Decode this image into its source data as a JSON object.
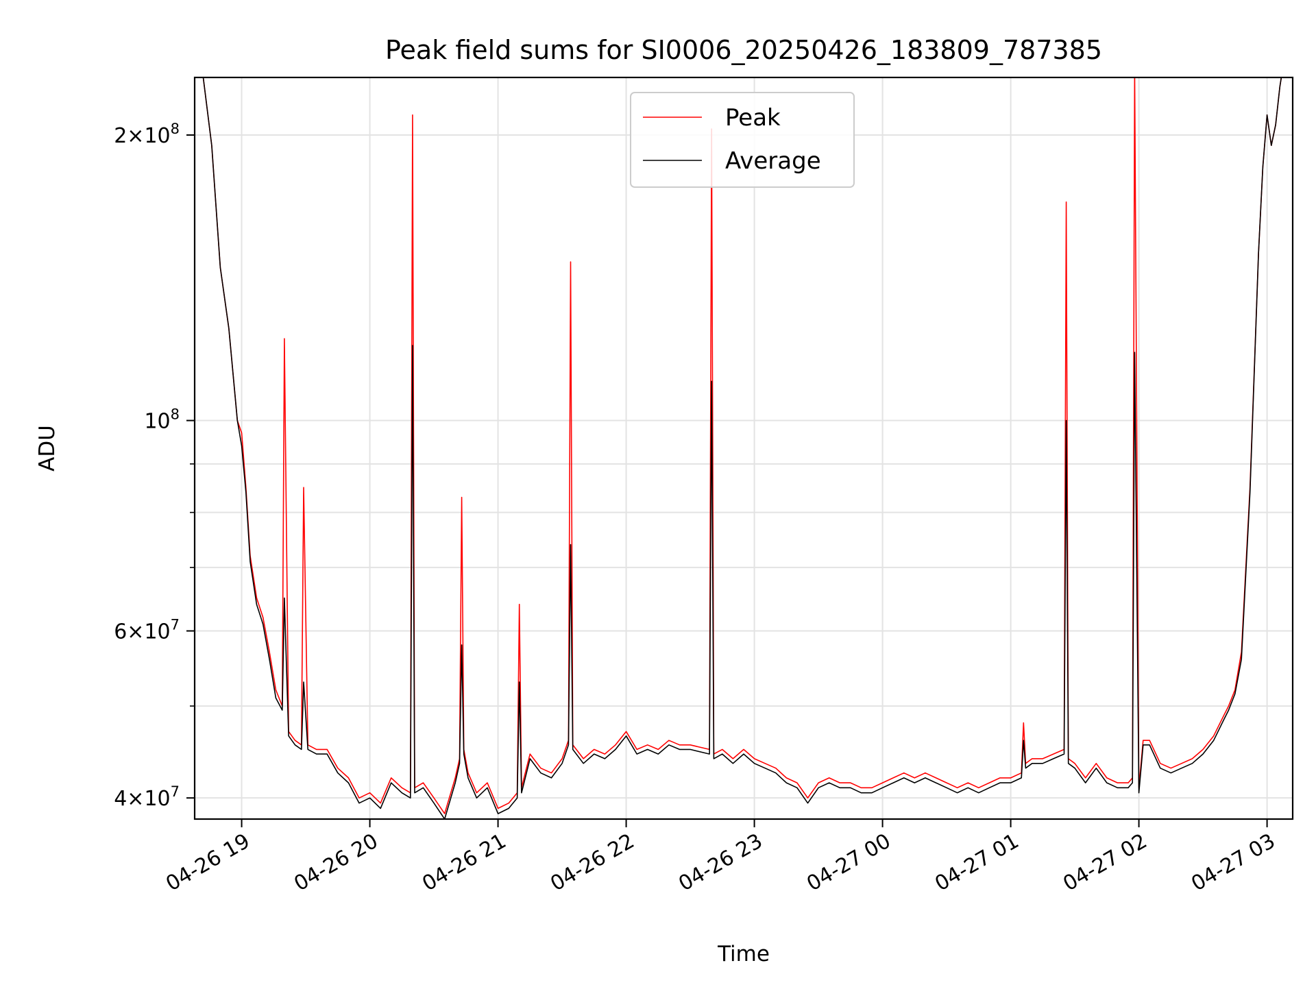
{
  "chart_data": {
    "type": "line",
    "title": "Peak field sums for SI0006_20250426_183809_787385",
    "xlabel": "Time",
    "ylabel": "ADU",
    "yscale": "log",
    "grid": true,
    "legend_placement": "top-center",
    "xlim": [
      "2025-04-26 18:38",
      "2025-04-27 03:12"
    ],
    "ylim": [
      38000000,
      230000000
    ],
    "x_ticks": [
      "04-26 19",
      "04-26 20",
      "04-26 21",
      "04-26 22",
      "04-26 23",
      "04-27 00",
      "04-27 01",
      "04-27 02",
      "04-27 03"
    ],
    "x_tick_values": [
      "2025-04-26 19:00",
      "2025-04-26 20:00",
      "2025-04-26 21:00",
      "2025-04-26 22:00",
      "2025-04-26 23:00",
      "2025-04-27 00:00",
      "2025-04-27 01:00",
      "2025-04-27 02:00",
      "2025-04-27 03:00"
    ],
    "y_ticks": [
      {
        "value": 40000000,
        "mantissa": "4",
        "exp": "7"
      },
      {
        "value": 60000000,
        "mantissa": "6",
        "exp": "7"
      },
      {
        "value": 100000000,
        "mantissa": "",
        "exp": "8"
      },
      {
        "value": 200000000,
        "mantissa": "2",
        "exp": "8"
      }
    ],
    "y_minor_ticks": [
      50000000,
      70000000,
      80000000,
      90000000
    ],
    "series": [
      {
        "name": "Peak",
        "color": "#ff0000",
        "x": [
          "2025-04-26 18:38",
          "2025-04-26 18:42",
          "2025-04-26 18:46",
          "2025-04-26 18:50",
          "2025-04-26 18:54",
          "2025-04-26 18:58",
          "2025-04-26 19:00",
          "2025-04-26 19:02",
          "2025-04-26 19:04",
          "2025-04-26 19:07",
          "2025-04-26 19:10",
          "2025-04-26 19:13",
          "2025-04-26 19:16",
          "2025-04-26 19:19",
          "2025-04-26 19:20",
          "2025-04-26 19:22",
          "2025-04-26 19:25",
          "2025-04-26 19:28",
          "2025-04-26 19:29",
          "2025-04-26 19:31",
          "2025-04-26 19:35",
          "2025-04-26 19:40",
          "2025-04-26 19:45",
          "2025-04-26 19:50",
          "2025-04-26 19:55",
          "2025-04-26 20:00",
          "2025-04-26 20:05",
          "2025-04-26 20:10",
          "2025-04-26 20:15",
          "2025-04-26 20:19",
          "2025-04-26 20:20",
          "2025-04-26 20:21",
          "2025-04-26 20:25",
          "2025-04-26 20:30",
          "2025-04-26 20:35",
          "2025-04-26 20:40",
          "2025-04-26 20:42",
          "2025-04-26 20:43",
          "2025-04-26 20:44",
          "2025-04-26 20:46",
          "2025-04-26 20:50",
          "2025-04-26 20:55",
          "2025-04-26 21:00",
          "2025-04-26 21:05",
          "2025-04-26 21:09",
          "2025-04-26 21:10",
          "2025-04-26 21:11",
          "2025-04-26 21:15",
          "2025-04-26 21:20",
          "2025-04-26 21:25",
          "2025-04-26 21:30",
          "2025-04-26 21:33",
          "2025-04-26 21:34",
          "2025-04-26 21:35",
          "2025-04-26 21:40",
          "2025-04-26 21:45",
          "2025-04-26 21:50",
          "2025-04-26 21:55",
          "2025-04-26 22:00",
          "2025-04-26 22:05",
          "2025-04-26 22:10",
          "2025-04-26 22:15",
          "2025-04-26 22:20",
          "2025-04-26 22:25",
          "2025-04-26 22:30",
          "2025-04-26 22:39",
          "2025-04-26 22:40",
          "2025-04-26 22:41",
          "2025-04-26 22:45",
          "2025-04-26 22:50",
          "2025-04-26 22:55",
          "2025-04-26 23:00",
          "2025-04-26 23:05",
          "2025-04-26 23:10",
          "2025-04-26 23:15",
          "2025-04-26 23:20",
          "2025-04-26 23:25",
          "2025-04-26 23:30",
          "2025-04-26 23:35",
          "2025-04-26 23:40",
          "2025-04-26 23:45",
          "2025-04-26 23:50",
          "2025-04-26 23:55",
          "2025-04-27 00:00",
          "2025-04-27 00:05",
          "2025-04-27 00:10",
          "2025-04-27 00:15",
          "2025-04-27 00:20",
          "2025-04-27 00:25",
          "2025-04-27 00:30",
          "2025-04-27 00:35",
          "2025-04-27 00:40",
          "2025-04-27 00:45",
          "2025-04-27 00:50",
          "2025-04-27 00:55",
          "2025-04-27 01:00",
          "2025-04-27 01:05",
          "2025-04-27 01:06",
          "2025-04-27 01:07",
          "2025-04-27 01:10",
          "2025-04-27 01:15",
          "2025-04-27 01:20",
          "2025-04-27 01:25",
          "2025-04-27 01:26",
          "2025-04-27 01:27",
          "2025-04-27 01:30",
          "2025-04-27 01:35",
          "2025-04-27 01:40",
          "2025-04-27 01:45",
          "2025-04-27 01:50",
          "2025-04-27 01:55",
          "2025-04-27 01:57",
          "2025-04-27 01:58",
          "2025-04-27 02:00",
          "2025-04-27 02:02",
          "2025-04-27 02:05",
          "2025-04-27 02:10",
          "2025-04-27 02:15",
          "2025-04-27 02:20",
          "2025-04-27 02:25",
          "2025-04-27 02:30",
          "2025-04-27 02:35",
          "2025-04-27 02:40",
          "2025-04-27 02:42",
          "2025-04-27 02:45",
          "2025-04-27 02:48",
          "2025-04-27 02:52",
          "2025-04-27 02:56",
          "2025-04-27 02:58",
          "2025-04-27 03:00",
          "2025-04-27 03:02",
          "2025-04-27 03:04",
          "2025-04-27 03:06",
          "2025-04-27 03:08"
        ],
        "values": [
          240000000,
          230000000,
          195000000,
          145000000,
          125000000,
          100000000,
          97000000,
          85000000,
          72000000,
          65000000,
          62000000,
          57000000,
          52000000,
          50000000,
          122000000,
          47000000,
          46000000,
          45500000,
          85000000,
          45500000,
          45000000,
          45000000,
          43000000,
          42000000,
          40000000,
          40500000,
          39500000,
          42000000,
          41000000,
          40500000,
          210000000,
          41000000,
          41500000,
          40000000,
          38500000,
          42000000,
          44000000,
          83000000,
          45000000,
          42500000,
          40500000,
          41500000,
          39000000,
          39500000,
          40500000,
          64000000,
          41000000,
          44500000,
          43000000,
          42500000,
          44000000,
          46000000,
          147000000,
          45500000,
          44000000,
          45000000,
          44500000,
          45500000,
          47000000,
          45000000,
          45500000,
          45000000,
          46000000,
          45500000,
          45500000,
          45000000,
          203000000,
          44500000,
          45000000,
          44000000,
          45000000,
          44000000,
          43500000,
          43000000,
          42000000,
          41500000,
          40000000,
          41500000,
          42000000,
          41500000,
          41500000,
          41000000,
          41000000,
          41500000,
          42000000,
          42500000,
          42000000,
          42500000,
          42000000,
          41500000,
          41000000,
          41500000,
          41000000,
          41500000,
          42000000,
          42000000,
          42500000,
          48000000,
          43500000,
          44000000,
          44000000,
          44500000,
          45000000,
          170000000,
          44000000,
          43500000,
          42000000,
          43500000,
          42000000,
          41500000,
          41500000,
          42000000,
          235000000,
          41000000,
          46000000,
          46000000,
          43500000,
          43000000,
          43500000,
          44000000,
          45000000,
          46500000,
          49000000,
          50000000,
          52000000,
          57000000,
          85000000,
          150000000,
          185000000,
          210000000,
          195000000,
          205000000,
          225000000,
          240000000
        ]
      },
      {
        "name": "Average",
        "color": "#000000",
        "x": [
          "2025-04-26 18:38",
          "2025-04-26 18:42",
          "2025-04-26 18:46",
          "2025-04-26 18:50",
          "2025-04-26 18:54",
          "2025-04-26 18:58",
          "2025-04-26 19:00",
          "2025-04-26 19:02",
          "2025-04-26 19:04",
          "2025-04-26 19:07",
          "2025-04-26 19:10",
          "2025-04-26 19:13",
          "2025-04-26 19:16",
          "2025-04-26 19:19",
          "2025-04-26 19:20",
          "2025-04-26 19:22",
          "2025-04-26 19:25",
          "2025-04-26 19:28",
          "2025-04-26 19:29",
          "2025-04-26 19:31",
          "2025-04-26 19:35",
          "2025-04-26 19:40",
          "2025-04-26 19:45",
          "2025-04-26 19:50",
          "2025-04-26 19:55",
          "2025-04-26 20:00",
          "2025-04-26 20:05",
          "2025-04-26 20:10",
          "2025-04-26 20:15",
          "2025-04-26 20:19",
          "2025-04-26 20:20",
          "2025-04-26 20:21",
          "2025-04-26 20:25",
          "2025-04-26 20:30",
          "2025-04-26 20:35",
          "2025-04-26 20:40",
          "2025-04-26 20:42",
          "2025-04-26 20:43",
          "2025-04-26 20:44",
          "2025-04-26 20:46",
          "2025-04-26 20:50",
          "2025-04-26 20:55",
          "2025-04-26 21:00",
          "2025-04-26 21:05",
          "2025-04-26 21:09",
          "2025-04-26 21:10",
          "2025-04-26 21:11",
          "2025-04-26 21:15",
          "2025-04-26 21:20",
          "2025-04-26 21:25",
          "2025-04-26 21:30",
          "2025-04-26 21:33",
          "2025-04-26 21:34",
          "2025-04-26 21:35",
          "2025-04-26 21:40",
          "2025-04-26 21:45",
          "2025-04-26 21:50",
          "2025-04-26 21:55",
          "2025-04-26 22:00",
          "2025-04-26 22:05",
          "2025-04-26 22:10",
          "2025-04-26 22:15",
          "2025-04-26 22:20",
          "2025-04-26 22:25",
          "2025-04-26 22:30",
          "2025-04-26 22:39",
          "2025-04-26 22:40",
          "2025-04-26 22:41",
          "2025-04-26 22:45",
          "2025-04-26 22:50",
          "2025-04-26 22:55",
          "2025-04-26 23:00",
          "2025-04-26 23:05",
          "2025-04-26 23:10",
          "2025-04-26 23:15",
          "2025-04-26 23:20",
          "2025-04-26 23:25",
          "2025-04-26 23:30",
          "2025-04-26 23:35",
          "2025-04-26 23:40",
          "2025-04-26 23:45",
          "2025-04-26 23:50",
          "2025-04-26 23:55",
          "2025-04-27 00:00",
          "2025-04-27 00:05",
          "2025-04-27 00:10",
          "2025-04-27 00:15",
          "2025-04-27 00:20",
          "2025-04-27 00:25",
          "2025-04-27 00:30",
          "2025-04-27 00:35",
          "2025-04-27 00:40",
          "2025-04-27 00:45",
          "2025-04-27 00:50",
          "2025-04-27 00:55",
          "2025-04-27 01:00",
          "2025-04-27 01:05",
          "2025-04-27 01:06",
          "2025-04-27 01:07",
          "2025-04-27 01:10",
          "2025-04-27 01:15",
          "2025-04-27 01:20",
          "2025-04-27 01:25",
          "2025-04-27 01:26",
          "2025-04-27 01:27",
          "2025-04-27 01:30",
          "2025-04-27 01:35",
          "2025-04-27 01:40",
          "2025-04-27 01:45",
          "2025-04-27 01:50",
          "2025-04-27 01:55",
          "2025-04-27 01:57",
          "2025-04-27 01:58",
          "2025-04-27 02:00",
          "2025-04-27 02:02",
          "2025-04-27 02:05",
          "2025-04-27 02:10",
          "2025-04-27 02:15",
          "2025-04-27 02:20",
          "2025-04-27 02:25",
          "2025-04-27 02:30",
          "2025-04-27 02:35",
          "2025-04-27 02:40",
          "2025-04-27 02:42",
          "2025-04-27 02:45",
          "2025-04-27 02:48",
          "2025-04-27 02:52",
          "2025-04-27 02:56",
          "2025-04-27 02:58",
          "2025-04-27 03:00",
          "2025-04-27 03:02",
          "2025-04-27 03:04",
          "2025-04-27 03:06",
          "2025-04-27 03:08"
        ],
        "values": [
          240000000,
          230000000,
          195000000,
          145000000,
          125000000,
          100000000,
          94000000,
          84000000,
          71000000,
          64000000,
          61000000,
          56000000,
          51000000,
          49500000,
          65000000,
          46500000,
          45500000,
          45000000,
          53000000,
          45000000,
          44500000,
          44500000,
          42500000,
          41500000,
          39500000,
          40000000,
          39000000,
          41500000,
          40500000,
          40000000,
          120000000,
          40500000,
          41000000,
          39500000,
          38000000,
          41500000,
          43500000,
          58000000,
          44500000,
          42000000,
          40000000,
          41000000,
          38500000,
          39000000,
          40000000,
          53000000,
          40500000,
          44000000,
          42500000,
          42000000,
          43500000,
          45500000,
          74000000,
          45000000,
          43500000,
          44500000,
          44000000,
          45000000,
          46500000,
          44500000,
          45000000,
          44500000,
          45500000,
          45000000,
          45000000,
          44500000,
          110000000,
          44000000,
          44500000,
          43500000,
          44500000,
          43500000,
          43000000,
          42500000,
          41500000,
          41000000,
          39500000,
          41000000,
          41500000,
          41000000,
          41000000,
          40500000,
          40500000,
          41000000,
          41500000,
          42000000,
          41500000,
          42000000,
          41500000,
          41000000,
          40500000,
          41000000,
          40500000,
          41000000,
          41500000,
          41500000,
          42000000,
          46000000,
          43000000,
          43500000,
          43500000,
          44000000,
          44500000,
          100000000,
          43500000,
          43000000,
          41500000,
          43000000,
          41500000,
          41000000,
          41000000,
          41500000,
          118000000,
          40500000,
          45500000,
          45500000,
          43000000,
          42500000,
          43000000,
          43500000,
          44500000,
          46000000,
          48500000,
          49500000,
          51500000,
          56000000,
          84000000,
          150000000,
          185000000,
          210000000,
          195000000,
          205000000,
          225000000,
          240000000
        ]
      }
    ]
  }
}
